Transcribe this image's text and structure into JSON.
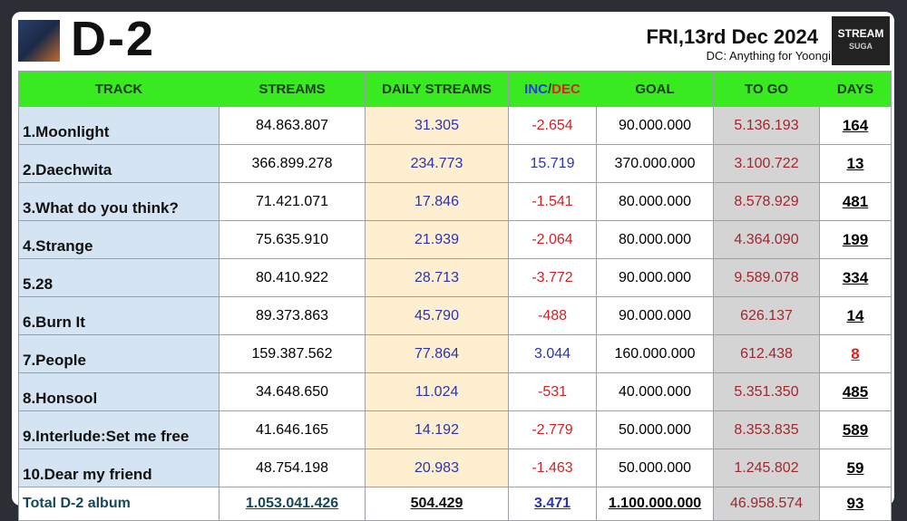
{
  "header": {
    "title": "D-2",
    "date": "FRI,13rd Dec 2024",
    "subtitle": "DC: Anything for Yoongi",
    "logo": [
      "STREAM",
      "SUGA"
    ]
  },
  "table": {
    "columns": [
      "TRACK",
      "STREAMS",
      "DAILY STREAMS",
      [
        "INC",
        "/",
        "DEC"
      ],
      "GOAL",
      "TO GO",
      "DAYS"
    ],
    "rows": [
      [
        "1.Moonlight",
        "84.863.807",
        "31.305",
        "-2.654",
        "90.000.000",
        "5.136.193",
        "164"
      ],
      [
        "2.Daechwita",
        "366.899.278",
        "234.773",
        "15.719",
        "370.000.000",
        "3.100.722",
        "13"
      ],
      [
        "3.What do you think?",
        "71.421.071",
        "17.846",
        "-1.541",
        "80.000.000",
        "8.578.929",
        "481"
      ],
      [
        "4.Strange",
        "75.635.910",
        "21.939",
        "-2.064",
        "80.000.000",
        "4.364.090",
        "199"
      ],
      [
        "5.28",
        "80.410.922",
        "28.713",
        "-3.772",
        "90.000.000",
        "9.589.078",
        "334"
      ],
      [
        "6.Burn It",
        "89.373.863",
        "45.790",
        "-488",
        "90.000.000",
        "626.137",
        "14"
      ],
      [
        "7.People",
        "159.387.562",
        "77.864",
        "3.044",
        "160.000.000",
        "612.438",
        "8"
      ],
      [
        "8.Honsool",
        "34.648.650",
        "11.024",
        "-531",
        "40.000.000",
        "5.351.350",
        "485"
      ],
      [
        "9.Interlude:Set me free",
        "41.646.165",
        "14.192",
        "-2.779",
        "50.000.000",
        "8.353.835",
        "589"
      ],
      [
        "10.Dear my friend",
        "48.754.198",
        "20.983",
        "-1.463",
        "50.000.000",
        "1.245.802",
        "59"
      ]
    ],
    "total": [
      "Total D-2 album",
      "1.053.041.426",
      "504.429",
      "3.471",
      "1.100.000.000",
      "46.958.574",
      "93"
    ]
  }
}
